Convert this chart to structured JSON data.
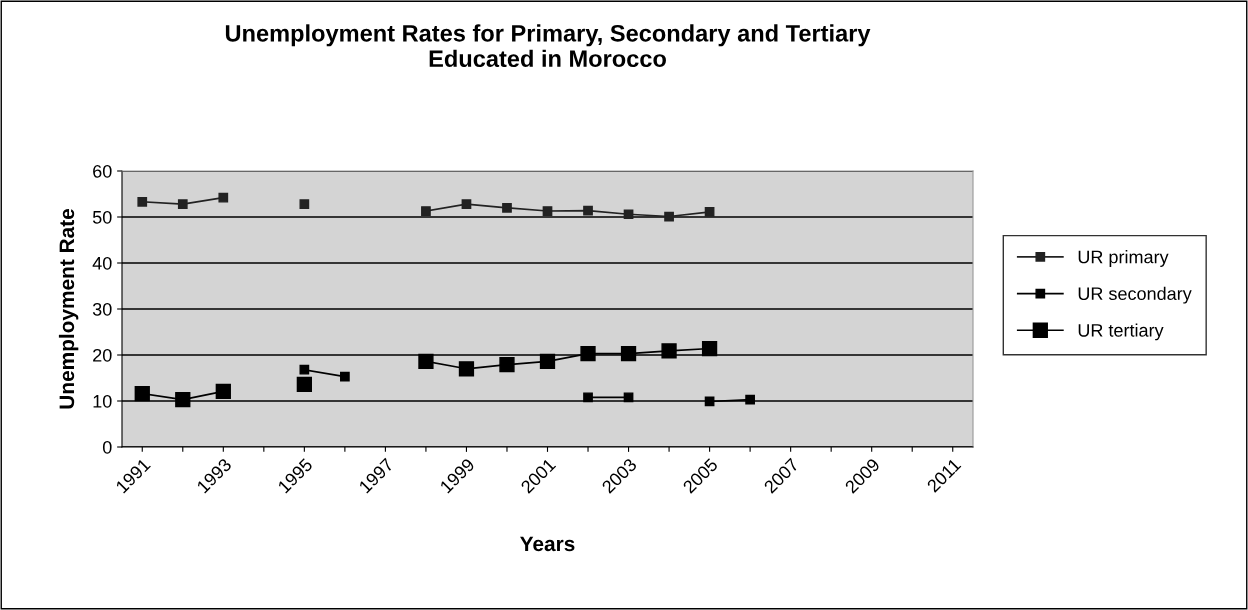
{
  "chart_data": {
    "type": "line",
    "title": "Unemployment Rates for Primary, Secondary and Tertiary\nEducated in Morocco",
    "xlabel": "Years",
    "ylabel": "Unemployment Rate",
    "categories": [
      "1991",
      null,
      "1993",
      null,
      "1995",
      null,
      "1997",
      null,
      "1999",
      null,
      "2001",
      null,
      "2003",
      null,
      "2005",
      null,
      "2007",
      null,
      "2009",
      null,
      "2011"
    ],
    "series": [
      {
        "name": "UR primary",
        "color": "#222222",
        "values": [
          53.3,
          52.8,
          54.2,
          null,
          52.8,
          null,
          null,
          51.3,
          52.8,
          52.0,
          51.3,
          51.4,
          50.6,
          50.1,
          51.1,
          null,
          null,
          null,
          null,
          null,
          null
        ]
      },
      {
        "name": "UR secondary",
        "color": "#000000",
        "values": [
          null,
          null,
          null,
          null,
          16.8,
          15.3,
          null,
          null,
          null,
          null,
          null,
          10.8,
          10.8,
          null,
          9.9,
          10.3,
          null,
          null,
          null,
          null,
          null
        ]
      },
      {
        "name": "UR tertiary",
        "color": "#000000",
        "values": [
          11.6,
          10.3,
          12.1,
          null,
          13.6,
          null,
          null,
          18.6,
          17.0,
          17.9,
          18.6,
          20.3,
          20.3,
          20.9,
          21.4,
          null,
          null,
          null,
          null,
          null,
          null
        ]
      }
    ],
    "ylim": [
      0,
      60
    ],
    "yticks": [
      0,
      10,
      20,
      30,
      40,
      50,
      60
    ],
    "grid": "y",
    "legend": "right",
    "marker": "square",
    "line_style": "solid"
  }
}
